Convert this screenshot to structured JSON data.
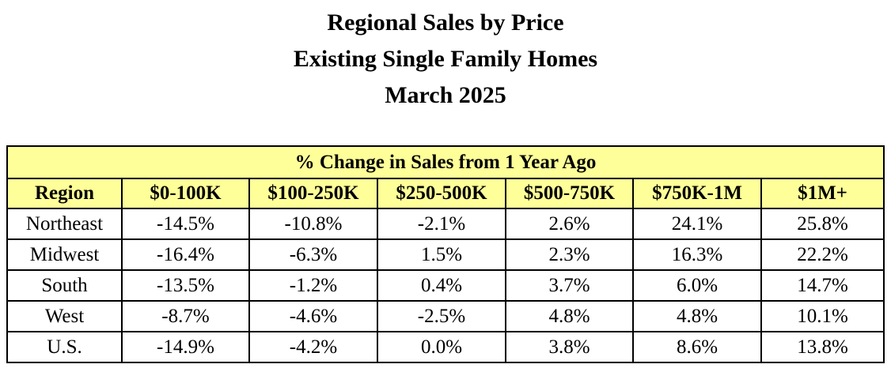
{
  "title_lines": [
    "Regional Sales by Price",
    "Existing Single Family Homes",
    "March 2025"
  ],
  "colors": {
    "header_fill": "#ffff99",
    "border": "#000000",
    "text": "#000000"
  },
  "chart_data": {
    "type": "table",
    "title": "Regional Sales by Price Existing Single Family Homes March 2025",
    "banner": "% Change in Sales from 1 Year Ago",
    "columns": [
      "Region",
      "$0-100K",
      "$100-250K",
      "$250-500K",
      "$500-750K",
      "$750K-1M",
      "$1M+"
    ],
    "rows": [
      {
        "region": "Northeast",
        "values": [
          "-14.5%",
          "-10.8%",
          "-2.1%",
          "2.6%",
          "24.1%",
          "25.8%"
        ]
      },
      {
        "region": "Midwest",
        "values": [
          "-16.4%",
          "-6.3%",
          "1.5%",
          "2.3%",
          "16.3%",
          "22.2%"
        ]
      },
      {
        "region": "South",
        "values": [
          "-13.5%",
          "-1.2%",
          "0.4%",
          "3.7%",
          "6.0%",
          "14.7%"
        ]
      },
      {
        "region": "West",
        "values": [
          "-8.7%",
          "-4.6%",
          "-2.5%",
          "4.8%",
          "4.8%",
          "10.1%"
        ]
      },
      {
        "region": "U.S.",
        "values": [
          "-14.9%",
          "-4.2%",
          "0.0%",
          "3.8%",
          "8.6%",
          "13.8%"
        ]
      }
    ],
    "numeric_values": {
      "Northeast": [
        -14.5,
        -10.8,
        -2.1,
        2.6,
        24.1,
        25.8
      ],
      "Midwest": [
        -16.4,
        -6.3,
        1.5,
        2.3,
        16.3,
        22.2
      ],
      "South": [
        -13.5,
        -1.2,
        0.4,
        3.7,
        6.0,
        14.7
      ],
      "West": [
        -8.7,
        -4.6,
        -2.5,
        4.8,
        4.8,
        10.1
      ],
      "U.S.": [
        -14.9,
        -4.2,
        0.0,
        3.8,
        8.6,
        13.8
      ]
    }
  }
}
